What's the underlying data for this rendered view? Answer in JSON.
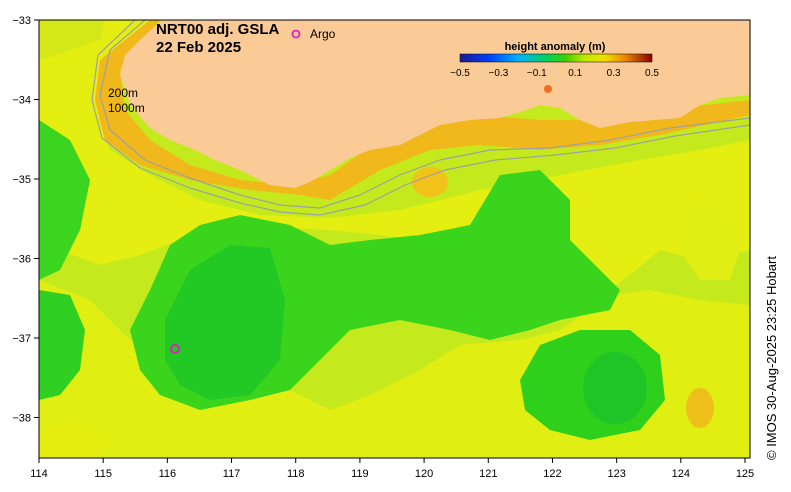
{
  "map": {
    "title_line1": "NRT00 adj. GSLA",
    "title_line2": "22 Feb 2025",
    "legend_marker_label": "Argo",
    "depth_label_1": "200m",
    "depth_label_2": "1000m",
    "credit": "© IMOS 30-Aug-2025 23:25 Hobart",
    "x_ticks": [
      "114",
      "115",
      "116",
      "117",
      "118",
      "119",
      "120",
      "121",
      "122",
      "123",
      "124",
      "125"
    ],
    "y_ticks": [
      "−33",
      "−34",
      "−35",
      "−36",
      "−37",
      "−38"
    ],
    "colorbar": {
      "title": "height anomaly (m)",
      "tick_labels": [
        "−0.5",
        "−0.3",
        "−0.1",
        "0.1",
        "0.3",
        "0.5"
      ]
    },
    "colors": {
      "land": "#fbcb97",
      "sea_base": "#b9e820",
      "argo_marker": "#e020c0"
    }
  }
}
